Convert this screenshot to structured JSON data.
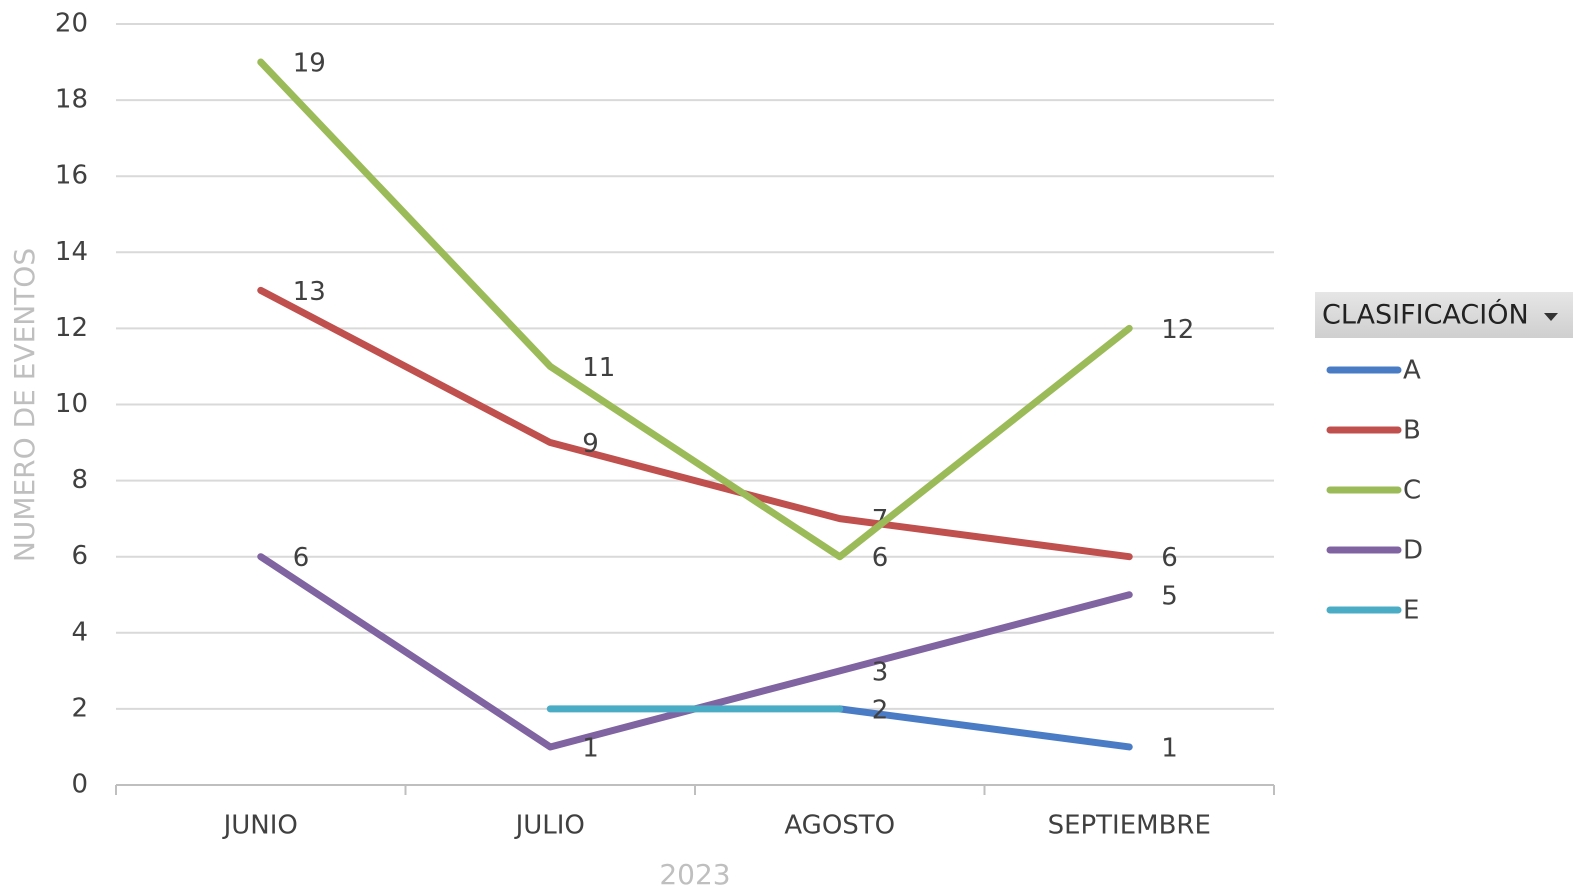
{
  "chart_data": {
    "type": "line",
    "x_label": "2023",
    "y_label": "NUMERO DE EVENTOS",
    "legend_title": "CLASIFICACIÓN",
    "legend": "right",
    "grid": true,
    "categories": [
      "JUNIO",
      "JULIO",
      "AGOSTO",
      "SEPTIEMBRE"
    ],
    "ylim": [
      0,
      20
    ],
    "yticks": [
      0,
      2,
      4,
      6,
      8,
      10,
      12,
      14,
      16,
      18,
      20
    ],
    "series": [
      {
        "name": "A",
        "color": "#4a7cc6",
        "values": [
          null,
          null,
          2,
          1
        ],
        "data_labels": true
      },
      {
        "name": "B",
        "color": "#c0504d",
        "values": [
          13,
          9,
          7,
          6
        ],
        "data_labels": true
      },
      {
        "name": "C",
        "color": "#9bbb59",
        "values": [
          19,
          11,
          6,
          12
        ],
        "data_labels": true
      },
      {
        "name": "D",
        "color": "#8064a2",
        "values": [
          6,
          1,
          3,
          5
        ],
        "data_labels": true
      },
      {
        "name": "E",
        "color": "#4bacc6",
        "values": [
          null,
          2,
          2,
          null
        ],
        "data_labels": false
      }
    ]
  }
}
